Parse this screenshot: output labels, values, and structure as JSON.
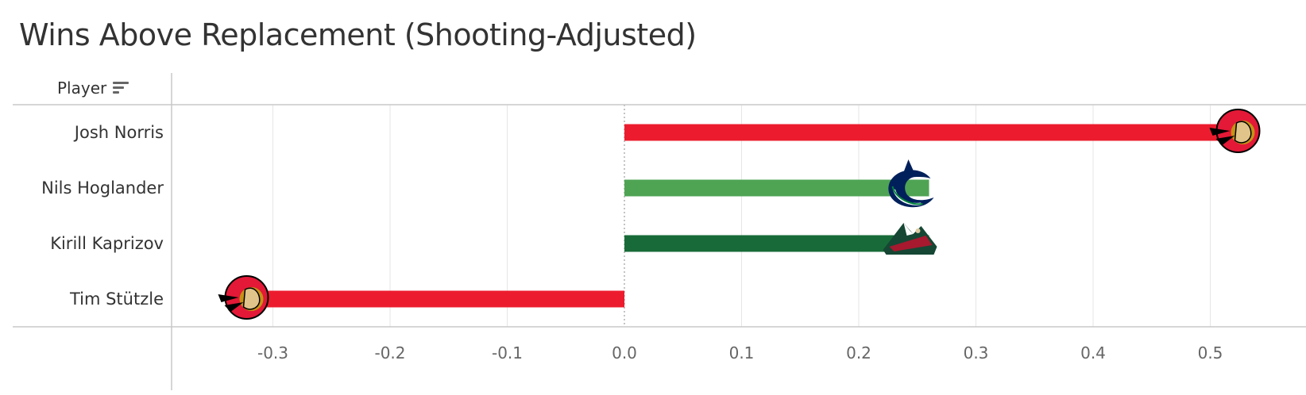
{
  "chart_data": {
    "type": "bar",
    "orientation": "horizontal",
    "title": "Wins Above Replacement (Shooting-Adjusted)",
    "row_header": "Player",
    "categories": [
      "Josh Norris",
      "Nils Hoglander",
      "Kirill Kaprizov",
      "Tim Stützle"
    ],
    "values": [
      0.54,
      0.26,
      0.26,
      -0.34
    ],
    "bar_colors": [
      "#ec1c2e",
      "#4fa454",
      "#186b38",
      "#ec1c2e"
    ],
    "teams": [
      "Ottawa Senators",
      "Vancouver Canucks",
      "Minnesota Wild",
      "Ottawa Senators"
    ],
    "x_ticks": [
      "-0.3",
      "-0.2",
      "-0.1",
      "0.0",
      "0.1",
      "0.2",
      "0.3",
      "0.4",
      "0.5"
    ],
    "xlim": [
      -0.385,
      0.585
    ],
    "grid": true
  }
}
